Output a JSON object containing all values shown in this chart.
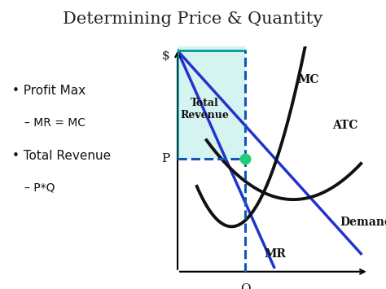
{
  "title": "Determining Price & Quantity",
  "title_fontsize": 15,
  "background_color": "#ffffff",
  "demand_color": "#2233cc",
  "mr_color": "#2233cc",
  "mc_color": "#111111",
  "atc_color": "#111111",
  "fill_color": "#c8f0ec",
  "fill_alpha": 0.75,
  "dashed_color": "#1155bb",
  "dot_color": "#22cc77",
  "label_MC": "MC",
  "label_ATC": "ATC",
  "label_Demand": "Demand",
  "label_MR": "MR",
  "label_TotalRevenue": "Total\nRevenue",
  "label_P": "P",
  "label_Q": "Q",
  "label_dollar": "$",
  "Q_star": 3.5,
  "P_star": 5.0,
  "xlim": [
    0,
    10
  ],
  "ylim": [
    0,
    10
  ]
}
